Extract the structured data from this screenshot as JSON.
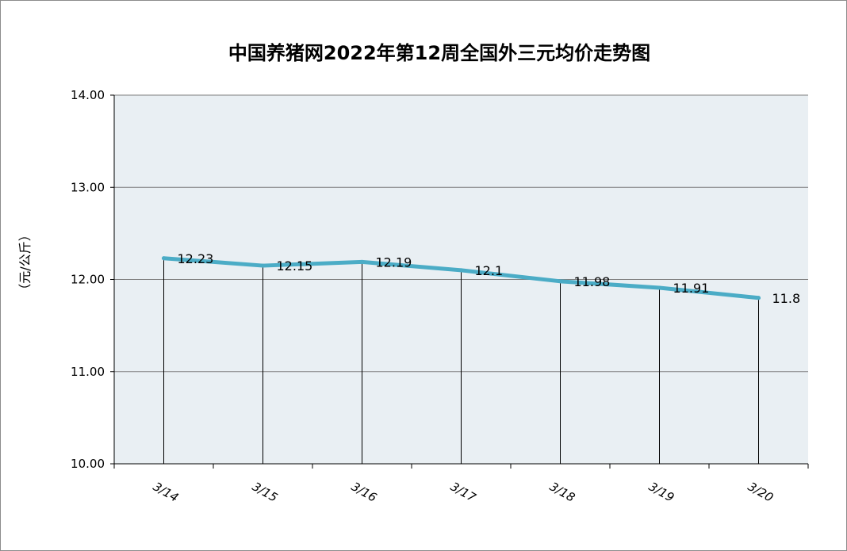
{
  "chart_data": {
    "type": "line",
    "title": "中国养猪网2022年第12周全国外三元均价走势图",
    "ylabel": "（元/公斤）",
    "xlabel": "",
    "categories": [
      "3/14",
      "3/15",
      "3/16",
      "3/17",
      "3/18",
      "3/19",
      "3/20"
    ],
    "series": [
      {
        "values": [
          12.23,
          12.15,
          12.19,
          12.1,
          11.98,
          11.91,
          11.8
        ],
        "labels": [
          "12.23",
          "12.15",
          "12.19",
          "12.1",
          "11.98",
          "11.91",
          "11.8"
        ]
      }
    ],
    "ylim": [
      10,
      14
    ],
    "yticks": [
      "10.00",
      "11.00",
      "12.00",
      "13.00",
      "14.00"
    ],
    "grid": true,
    "legend": "none",
    "colors": {
      "line": "#4bacc6",
      "plot_bg": "#e9eff3",
      "grid": "#7f7f7f",
      "drop_lines": "#000000"
    }
  }
}
